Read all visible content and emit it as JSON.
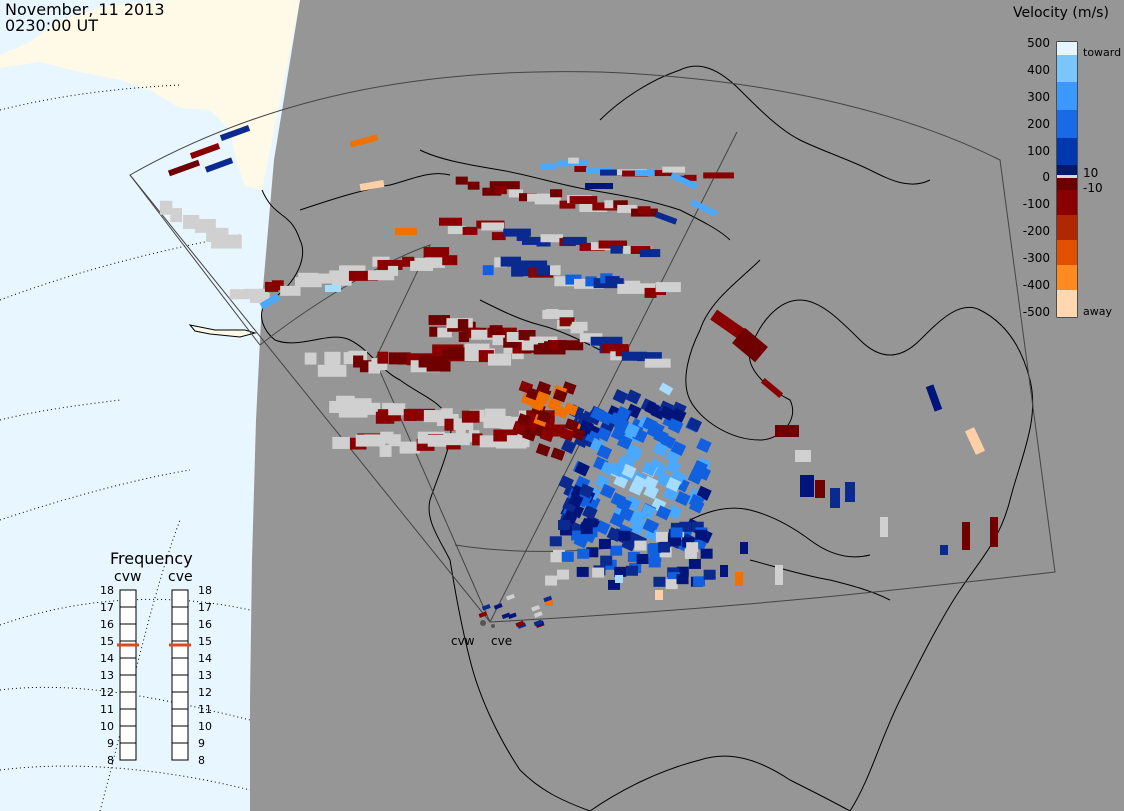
{
  "header": {
    "date": "November, 11 2013",
    "time": "0230:00 UT"
  },
  "colorbar": {
    "title": "Velocity (m/s)",
    "ticks": [
      "500",
      "400",
      "300",
      "200",
      "100",
      "10",
      "0",
      "-10",
      "-100",
      "-200",
      "-300",
      "-400",
      "-500"
    ],
    "toward_label": "toward",
    "away_label": "away",
    "colors": [
      "#cfeeff",
      "#4aa9ff",
      "#0a5be0",
      "#002080",
      "#8a0000",
      "#ff7000",
      "#ffd8b0"
    ]
  },
  "frequency": {
    "title": "Frequency",
    "radars": [
      "cvw",
      "cve"
    ],
    "ticks": [
      "18",
      "17",
      "16",
      "15",
      "14",
      "13",
      "12",
      "11",
      "10",
      "9",
      "8"
    ],
    "selected_mhz": 15
  },
  "radars": {
    "west_label": "cvw",
    "east_label": "cve"
  },
  "map_colors": {
    "ocean": "#e8f6ff",
    "land_lit": "#fffae8",
    "night": "#969696",
    "ground_scatter": "#d0d0d0"
  }
}
